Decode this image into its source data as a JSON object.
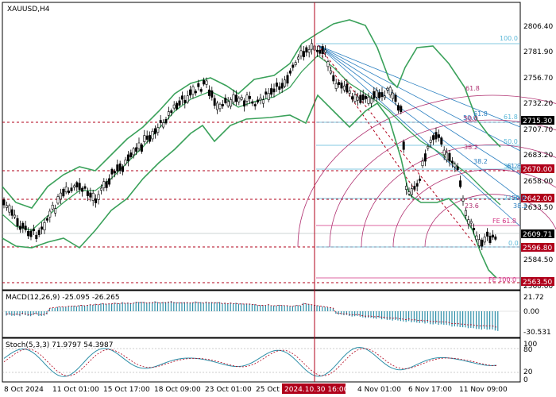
{
  "symbol": "XAUUSD,H4",
  "main": {
    "y_ticks": [
      "2806.40",
      "2781.90",
      "2756.70",
      "2732.20",
      "2707.70",
      "2683.20",
      "2658.00",
      "2633.50",
      "2584.50",
      "2560.00"
    ],
    "levels": {
      "l2715": {
        "label": "2715.30",
        "color": "#000000"
      },
      "l2670": {
        "label": "2670.00",
        "color": "#b0001a"
      },
      "l2642": {
        "label": "2642.00",
        "color": "#b0001a"
      },
      "l2609": {
        "label": "2609.71",
        "color": "#ffffff"
      },
      "l2596": {
        "label": "2596.80",
        "color": "#b0001a"
      },
      "l2563": {
        "label": "2563.50",
        "color": "#b0001a"
      }
    },
    "fib_retracement": [
      "100.0",
      "61.8",
      "50.0",
      "38.2",
      "23.6",
      "0.0"
    ],
    "fib_fan_top": [
      "61.8",
      "50.0",
      "38.2"
    ],
    "fib_fan_bottom": [
      "61.8",
      "50.0",
      "38.2"
    ],
    "fib_arc": [
      "61.8",
      "50.0",
      "38.2"
    ],
    "fib_ext": [
      "FE 61.8",
      "FE 100.0"
    ]
  },
  "macd": {
    "title": "MACD(12,26,9) -25.095 -26.265",
    "y_ticks": [
      "21.72",
      "0.00",
      "-30.531"
    ]
  },
  "stoch": {
    "title": "Stoch(5,3,3) 71.9797 54.3987",
    "y_ticks": [
      "100",
      "80",
      "20",
      "0"
    ]
  },
  "x_labels": [
    "8 Oct 2024",
    "11 Oct 01:00",
    "15 Oct 17:00",
    "18 Oct 09:00",
    "23 Oct 01:00",
    "25 Oct",
    "4 Nov 01:00",
    "6 Nov 17:00",
    "11 Nov 09:00"
  ],
  "cursor_label": "2024.10.30 16:00",
  "colors": {
    "band": "#3aa15a",
    "candle": "#000000",
    "level": "#b0001a",
    "fan": "#2a7fc0",
    "arc": "#b03070",
    "macd": "#2e8fa8",
    "stoch": "#2e8fa8",
    "cursor": "#b0001a"
  }
}
